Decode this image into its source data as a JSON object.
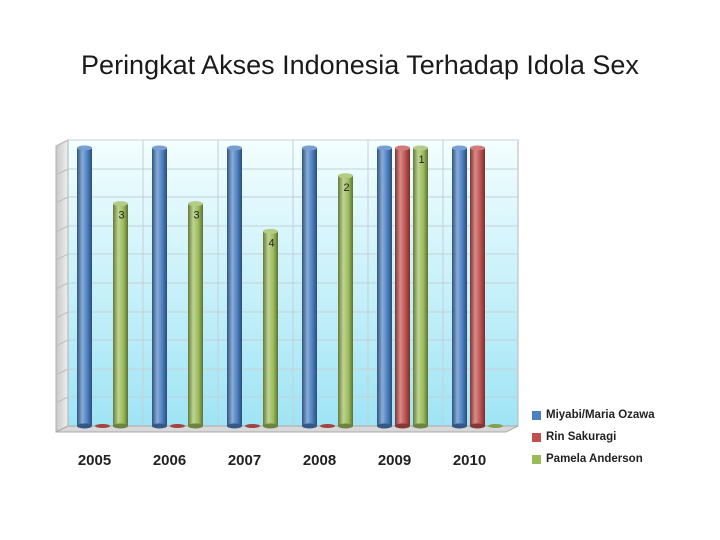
{
  "slide": {
    "title": "Peringkat Akses Indonesia Terhadap Idola Sex"
  },
  "chart_data": {
    "type": "bar",
    "title": "",
    "xlabel": "",
    "ylabel": "",
    "ylim": [
      0,
      10
    ],
    "grid": true,
    "legend_position": "bottom-right",
    "categories": [
      "2005",
      "2006",
      "2007",
      "2008",
      "2009",
      "2010"
    ],
    "series": [
      {
        "name": "Miyabi/Maria Ozawa",
        "color": "#4a7fc1",
        "values": [
          10,
          10,
          10,
          10,
          10,
          10
        ],
        "labels": [
          "",
          "",
          "",
          "",
          "",
          ""
        ]
      },
      {
        "name": "Rin Sakuragi",
        "color": "#c0504d",
        "values": [
          0,
          0,
          0,
          0,
          10,
          10
        ],
        "labels": [
          "",
          "",
          "",
          "",
          "",
          ""
        ]
      },
      {
        "name": "Pamela Anderson",
        "color": "#9bbb59",
        "values": [
          8,
          8,
          7,
          9,
          10,
          0
        ],
        "labels": [
          "3",
          "3",
          "4",
          "2",
          "1",
          ""
        ]
      }
    ]
  }
}
